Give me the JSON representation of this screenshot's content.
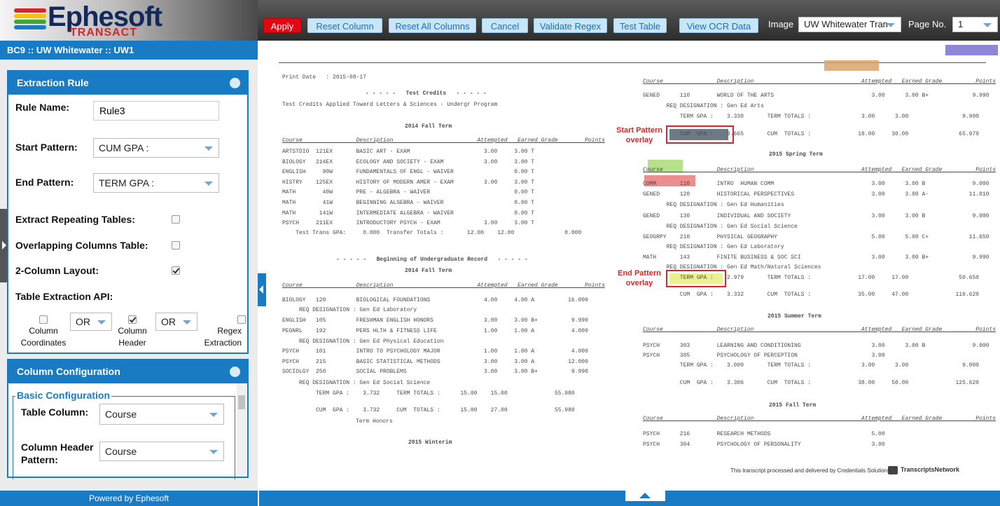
{
  "header": {
    "logo": "Ephesoft",
    "logo_sub": "TRANSACT",
    "breadcrumb": "BC9 :: UW Whitewater :: UW1"
  },
  "toolbar": {
    "buttons": [
      "Apply",
      "Reset Column",
      "Reset All Columns",
      "Cancel",
      "Validate Regex",
      "Test Table",
      "View OCR Data"
    ],
    "image_label": "Image",
    "image_value": "UW Whitewater Tran",
    "page_label": "Page No.",
    "page_value": "1"
  },
  "extraction_rule": {
    "title": "Extraction Rule",
    "rule_name_label": "Rule Name:",
    "rule_name": "Rule3",
    "start_pattern_label": "Start Pattern:",
    "start_pattern": "CUM GPA :",
    "end_pattern_label": "End Pattern:",
    "end_pattern": "TERM GPA :",
    "options": [
      {
        "label": "Extract Repeating Tables:",
        "checked": false
      },
      {
        "label": "Overlapping Columns Table:",
        "checked": false
      },
      {
        "label": "2-Column Layout:",
        "checked": true
      }
    ],
    "api_label": "Table Extraction API:",
    "api_options": [
      {
        "label": [
          "Column",
          "Coordinates"
        ],
        "checked": false
      },
      {
        "label": [
          "Column",
          "Header"
        ],
        "checked": true
      },
      {
        "label": [
          "Regex",
          "Extraction"
        ],
        "checked": false
      }
    ],
    "operators": [
      "OR",
      "OR"
    ]
  },
  "column_configuration": {
    "title": "Column Configuration",
    "section": "Basic Configuration",
    "table_column_label": "Table Column:",
    "table_column": "Course",
    "header_pattern_label": [
      "Column Header",
      "Pattern:"
    ],
    "header_pattern": "Course"
  },
  "footer": "Powered by Ephesoft",
  "document": {
    "left_lines": [
      "Print Date   : 2015-08-17",
      "- - - - -   Test Credits   - - - - -",
      "Test Credits Applied Toward Letters & Sciences - Undergr Program",
      "2014 Fall Term",
      "Course                Description                         Attempted   Earned Grade        Points",
      "ARTSTDIO  121EX       BASIC ART - EXAM                      3.00     3.00 T",
      "BIOLOGY   214EX       ECOLOGY AND SOCIETY - EXAM            3.00     3.00 T",
      "ENGLISH     90W       FUNDAMENTALS OF ENGL - WAIVER                  0.00 T",
      "HISTRY    125EX       HISTORY OF MODERN AMER - EXAM         3.00     3.00 T",
      "MATH        40W       PRE - ALGEBRA - WAIVER                         0.00 T",
      "MATH        41W       BEGINNING ALGEBRA - WAIVER                     0.00 T",
      "MATH       141W       INTERMEDIATE ALGEBRA - WAIVER                  0.00 T",
      "PSYCH     211EX       INTRODUCTORY PSYCH - EXAM             3.00     3.00 T",
      "    Test Trans GPA:     0.000  Transfer Totals :       12.00    12.00               0.000",
      "- - - - -   Beginning of Undergraduate Record   - - - - -",
      "2014 Fall Term",
      "Course                Description                         Attempted   Earned Grade        Points",
      "BIOLOGY   120         BIOLOGICAL FOUNDATIONS                4.00     4.00 A          16.000",
      "     REQ DESIGNATION : Gen Ed Laboratory",
      "ENGLISH   105         FRESHMAN ENGLISH HONORS               3.00     3.00 B+          9.990",
      "PEGNRL    192         PERS HLTH & FITNESS LIFE              1.00     1.00 A           4.000",
      "     REQ DESIGNATION : Gen Ed Physical Education",
      "PSYCH     101         INTRO TO PSYCHOLOGY MAJOR             1.00     1.00 A           4.000",
      "PSYCH     215         BASIC STATISTICAL METHODS             3.00     3.00 A          12.000",
      "SOCIOLGY  250         SOCIAL PROBLEMS                       3.00     3.00 B+          9.990",
      "     REQ DESIGNATION : Gen Ed Social Science",
      "          TERM GPA :    3.732     TERM TOTALS :      15.00    15.00              55.980",
      "          CUM  GPA :    3.732     CUM  TOTALS :      15.00    27.00              55.980",
      "Term Honors",
      "2015 Winterim"
    ],
    "right_lines": [
      "Course                Description                                Attempted   Earned Grade          Points",
      "GENED      110        WORLD OF THE ARTS                             3.00      3.00 B+             9.990",
      "       REQ DESIGNATION : Gen Ed Arts",
      "           TERM GPA :    3.330       TERM TOTALS :               3.00      3.00                9.990",
      "           CUM  GPA :    3.665       CUM  TOTALS :              18.00     30.00               65.970",
      "2015 Spring Term",
      "Course                Description                                Attempted   Earned Grade          Points",
      "COMM       110        INTRO  HUMAN COMM                             3.00      3.00 B              9.000",
      "GENED      120        HISTORICAL PERSPECTIVES                       3.00      3.00 A-            11.010",
      "       REQ DESIGNATION : Gen Ed Humanities",
      "GENED      130        INDIVIDUAL AND SOCIETY                        3.00      3.00 B              9.000",
      "       REQ DESIGNATION : Gen Ed Social Science",
      "GEOGRPY    210        PHYSICAL GEOGRAPHY                            5.00      5.00 C+            11.650",
      "       REQ DESIGNATION : Gen Ed Laboratory",
      "MATH       143        FINITE BUSINESS & SOC SCI                     3.00      3.00 B+             9.990",
      "       REQ DESIGNATION : Gen Ed Math/Natural Sciences",
      "           TERM GPA :    2.979       TERM TOTALS :              17.00     17.00               50.650",
      "           CUM  GPA :    3.332       CUM  TOTALS :              35.00     47.00              116.620",
      "2015 Summer Term",
      "Course                Description                                Attempted   Earned Grade          Points",
      "PSYCH      303        LEARNING AND CONDITIONING                     3.00      3.00 B              9.000",
      "PSYCH      305        PSYCHOLOGY OF PERCEPTION                      3.00",
      "           TERM GPA :    3.000       TERM TOTALS :               3.00      3.00                9.000",
      "           CUM  GPA :    3.306       CUM  TOTALS :              38.00     50.00              125.620",
      "2015 Fall Term",
      "Course                Description                                Attempted   Earned Grade          Points",
      "PSYCH      216        RESEARCH METHODS                              5.00",
      "PSYCH      304        PSYCHOLOGY OF PERSONALITY                     3.00"
    ],
    "footer_text": "This transcript processed and delivered by Credentials Solutions",
    "footer_brand": "TranscriptsNetwork"
  },
  "annotations": {
    "start": [
      "Start Pattern",
      "overlay"
    ],
    "end": [
      "End Pattern",
      "overlay"
    ]
  }
}
